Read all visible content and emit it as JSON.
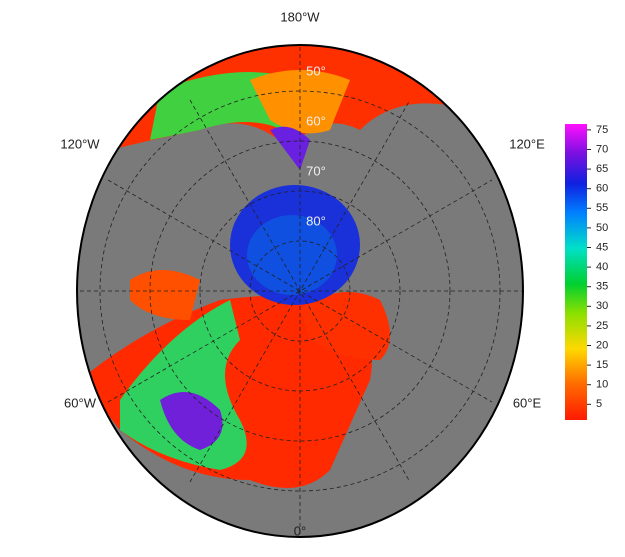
{
  "map": {
    "longitude_labels": [
      "180°W",
      "120°W",
      "120°E",
      "60°W",
      "60°E",
      "0°"
    ],
    "latitude_labels": [
      "50°",
      "60°",
      "70°",
      "80°"
    ],
    "colorbar": {
      "lim": [
        1,
        76.5
      ],
      "ticks": [
        5,
        10,
        15,
        20,
        25,
        30,
        35,
        40,
        45,
        50,
        55,
        60,
        65,
        70,
        75
      ]
    }
  }
}
